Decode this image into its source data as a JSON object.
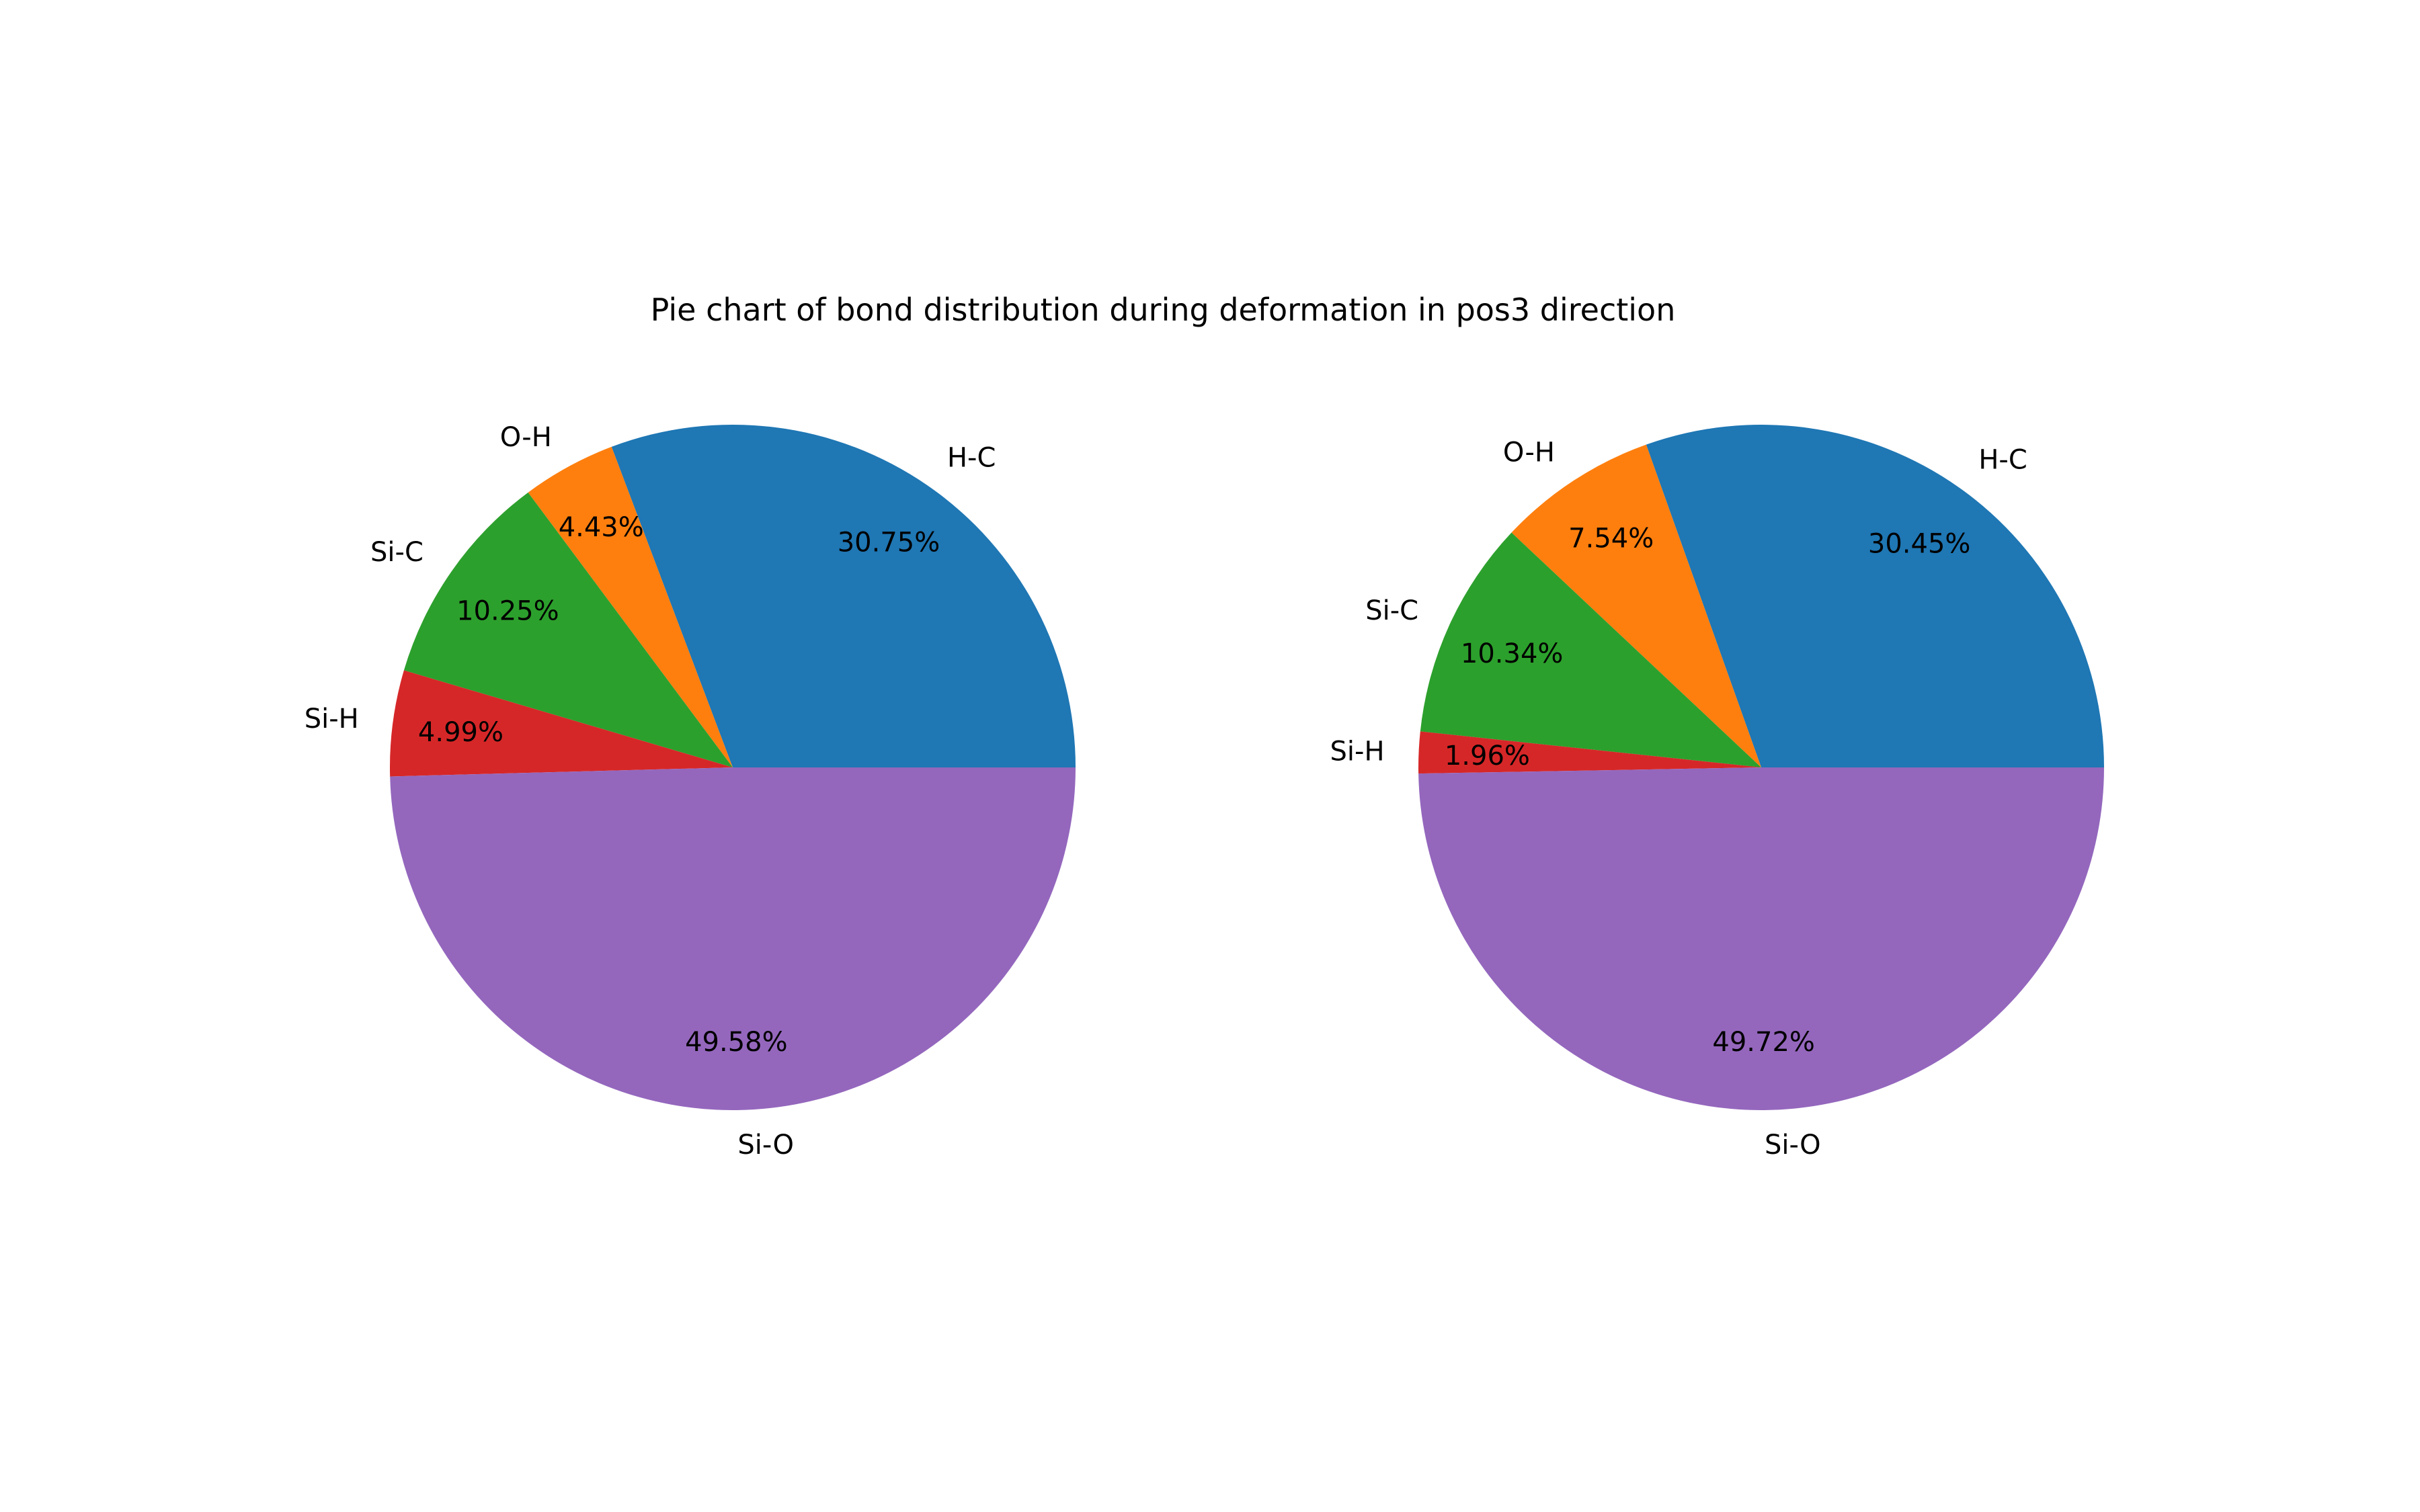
{
  "chart_data": [
    {
      "type": "pie",
      "title": "Pie chart of bond distribution during deformation in pos3 direction",
      "start_angle_deg": 0,
      "direction": "counterclockwise",
      "slices": [
        {
          "label": "H-C",
          "value": 30.75,
          "pct_text": "30.75%",
          "color": "#1f77b4"
        },
        {
          "label": "O-H",
          "value": 4.43,
          "pct_text": "4.43%",
          "color": "#ff7f0e"
        },
        {
          "label": "Si-C",
          "value": 10.25,
          "pct_text": "10.25%",
          "color": "#2ca02c"
        },
        {
          "label": "Si-H",
          "value": 4.99,
          "pct_text": "4.99%",
          "color": "#d62728"
        },
        {
          "label": "Si-O",
          "value": 49.58,
          "pct_text": "49.58%",
          "color": "#9467bd"
        }
      ]
    },
    {
      "type": "pie",
      "start_angle_deg": 0,
      "direction": "counterclockwise",
      "slices": [
        {
          "label": "H-C",
          "value": 30.45,
          "pct_text": "30.45%",
          "color": "#1f77b4"
        },
        {
          "label": "O-H",
          "value": 7.54,
          "pct_text": "7.54%",
          "color": "#ff7f0e"
        },
        {
          "label": "Si-C",
          "value": 10.34,
          "pct_text": "10.34%",
          "color": "#2ca02c"
        },
        {
          "label": "Si-H",
          "value": 1.96,
          "pct_text": "1.96%",
          "color": "#d62728"
        },
        {
          "label": "Si-O",
          "value": 49.72,
          "pct_text": "49.72%",
          "color": "#9467bd"
        }
      ]
    }
  ]
}
